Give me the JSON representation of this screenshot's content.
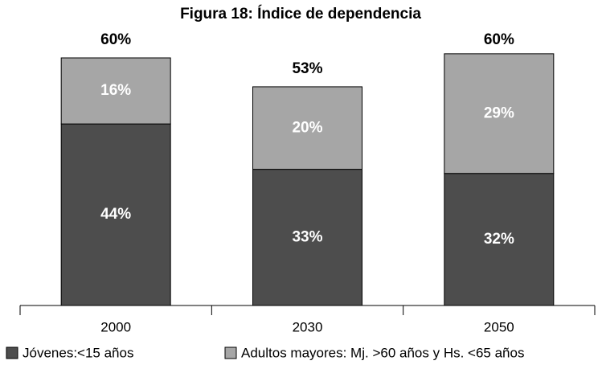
{
  "chart_data": {
    "type": "stacked_bar",
    "title": "Figura 18: Índice de dependencia",
    "categories": [
      "2000",
      "2030",
      "2050"
    ],
    "series": [
      {
        "name": "Jóvenes:<15 años",
        "color": "#4d4d4d",
        "values": [
          44,
          33,
          32
        ],
        "value_labels": [
          "44%",
          "33%",
          "32%"
        ]
      },
      {
        "name": "Adultos mayores: Mj. >60 años y Hs. <65 años",
        "color": "#a6a6a6",
        "values": [
          16,
          20,
          29
        ],
        "value_labels": [
          "16%",
          "20%",
          "29%"
        ]
      }
    ],
    "totals": {
      "values": [
        60,
        53,
        60
      ],
      "value_labels": [
        "60%",
        "53%",
        "60%"
      ]
    },
    "legend": "bottom"
  }
}
